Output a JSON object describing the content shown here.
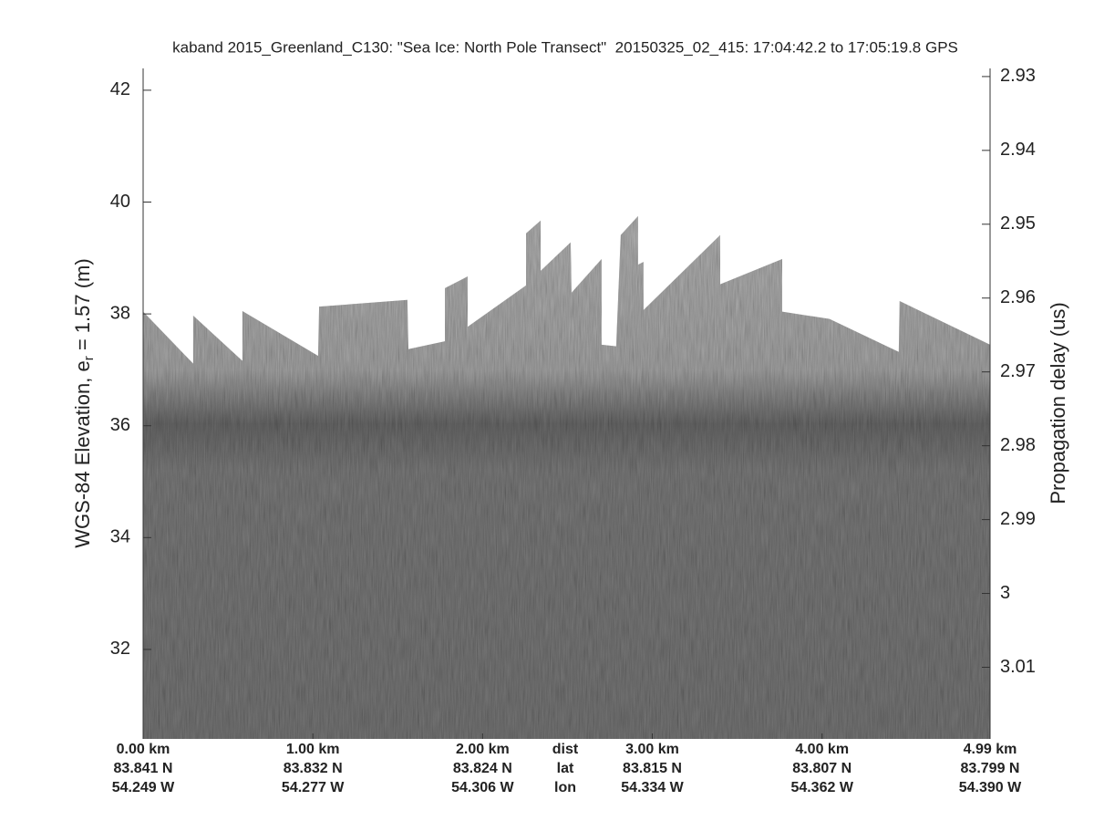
{
  "chart_data": {
    "type": "echogram",
    "title": "kaband 2015_Greenland_C130: \"Sea Ice: North Pole Transect\"  20150325_02_415: 17:04:42.2 to 17:05:19.8 GPS",
    "ylabel_parts": [
      "WGS-84 Elevation, e",
      "r",
      " = 1.57 (m)"
    ],
    "y2label": "Propagation delay (us)",
    "xlim": [
      0,
      4.99
    ],
    "xticks": [
      {
        "value": 0,
        "label": "0.00 km"
      },
      {
        "value": 1,
        "label": "1.00 km"
      },
      {
        "value": 2,
        "label": "2.00 km"
      },
      {
        "value": 3,
        "label": "3.00 km"
      },
      {
        "value": 4,
        "label": "4.00 km"
      },
      {
        "value": 4.99,
        "label": "4.99 km"
      }
    ],
    "lat_labels": [
      "83.841 N",
      "83.832 N",
      "83.824 N",
      "83.815 N",
      "83.807 N",
      "83.799 N"
    ],
    "lon_labels": [
      "54.249 W",
      "54.277 W",
      "54.306 W",
      "54.334 W",
      "54.362 W",
      "54.390 W"
    ],
    "row_labels": [
      "dist",
      "lat",
      "lon"
    ],
    "ylim": [
      30.4,
      42.39
    ],
    "yticks": [
      32,
      34,
      36,
      38,
      40,
      42
    ],
    "y2lim": [
      3.0197,
      2.9289
    ],
    "y2ticks": [
      2.93,
      2.94,
      2.95,
      2.96,
      2.97,
      2.98,
      2.99,
      3,
      3.01
    ],
    "surface": {
      "x": [
        0,
        0.295,
        0.295,
        0.585,
        0.585,
        1.031,
        1.037,
        1.557,
        1.563,
        1.778,
        1.778,
        1.912,
        1.912,
        2.256,
        2.256,
        2.342,
        2.342,
        2.519,
        2.524,
        2.701,
        2.701,
        2.787,
        2.814,
        2.916,
        2.916,
        2.948,
        2.948,
        3.4,
        3.4,
        3.765,
        3.765,
        4.044,
        4.452,
        4.457,
        4.99
      ],
      "values": [
        38.04,
        37.11,
        37.97,
        37.16,
        38.05,
        37.25,
        38.13,
        38.25,
        37.37,
        37.51,
        38.46,
        38.67,
        37.77,
        38.51,
        39.44,
        39.67,
        38.77,
        39.28,
        38.38,
        38.98,
        37.45,
        37.42,
        39.41,
        39.75,
        38.88,
        38.93,
        38.07,
        39.41,
        38.53,
        38.98,
        38.04,
        37.91,
        37.32,
        38.23,
        37.45
      ]
    }
  }
}
